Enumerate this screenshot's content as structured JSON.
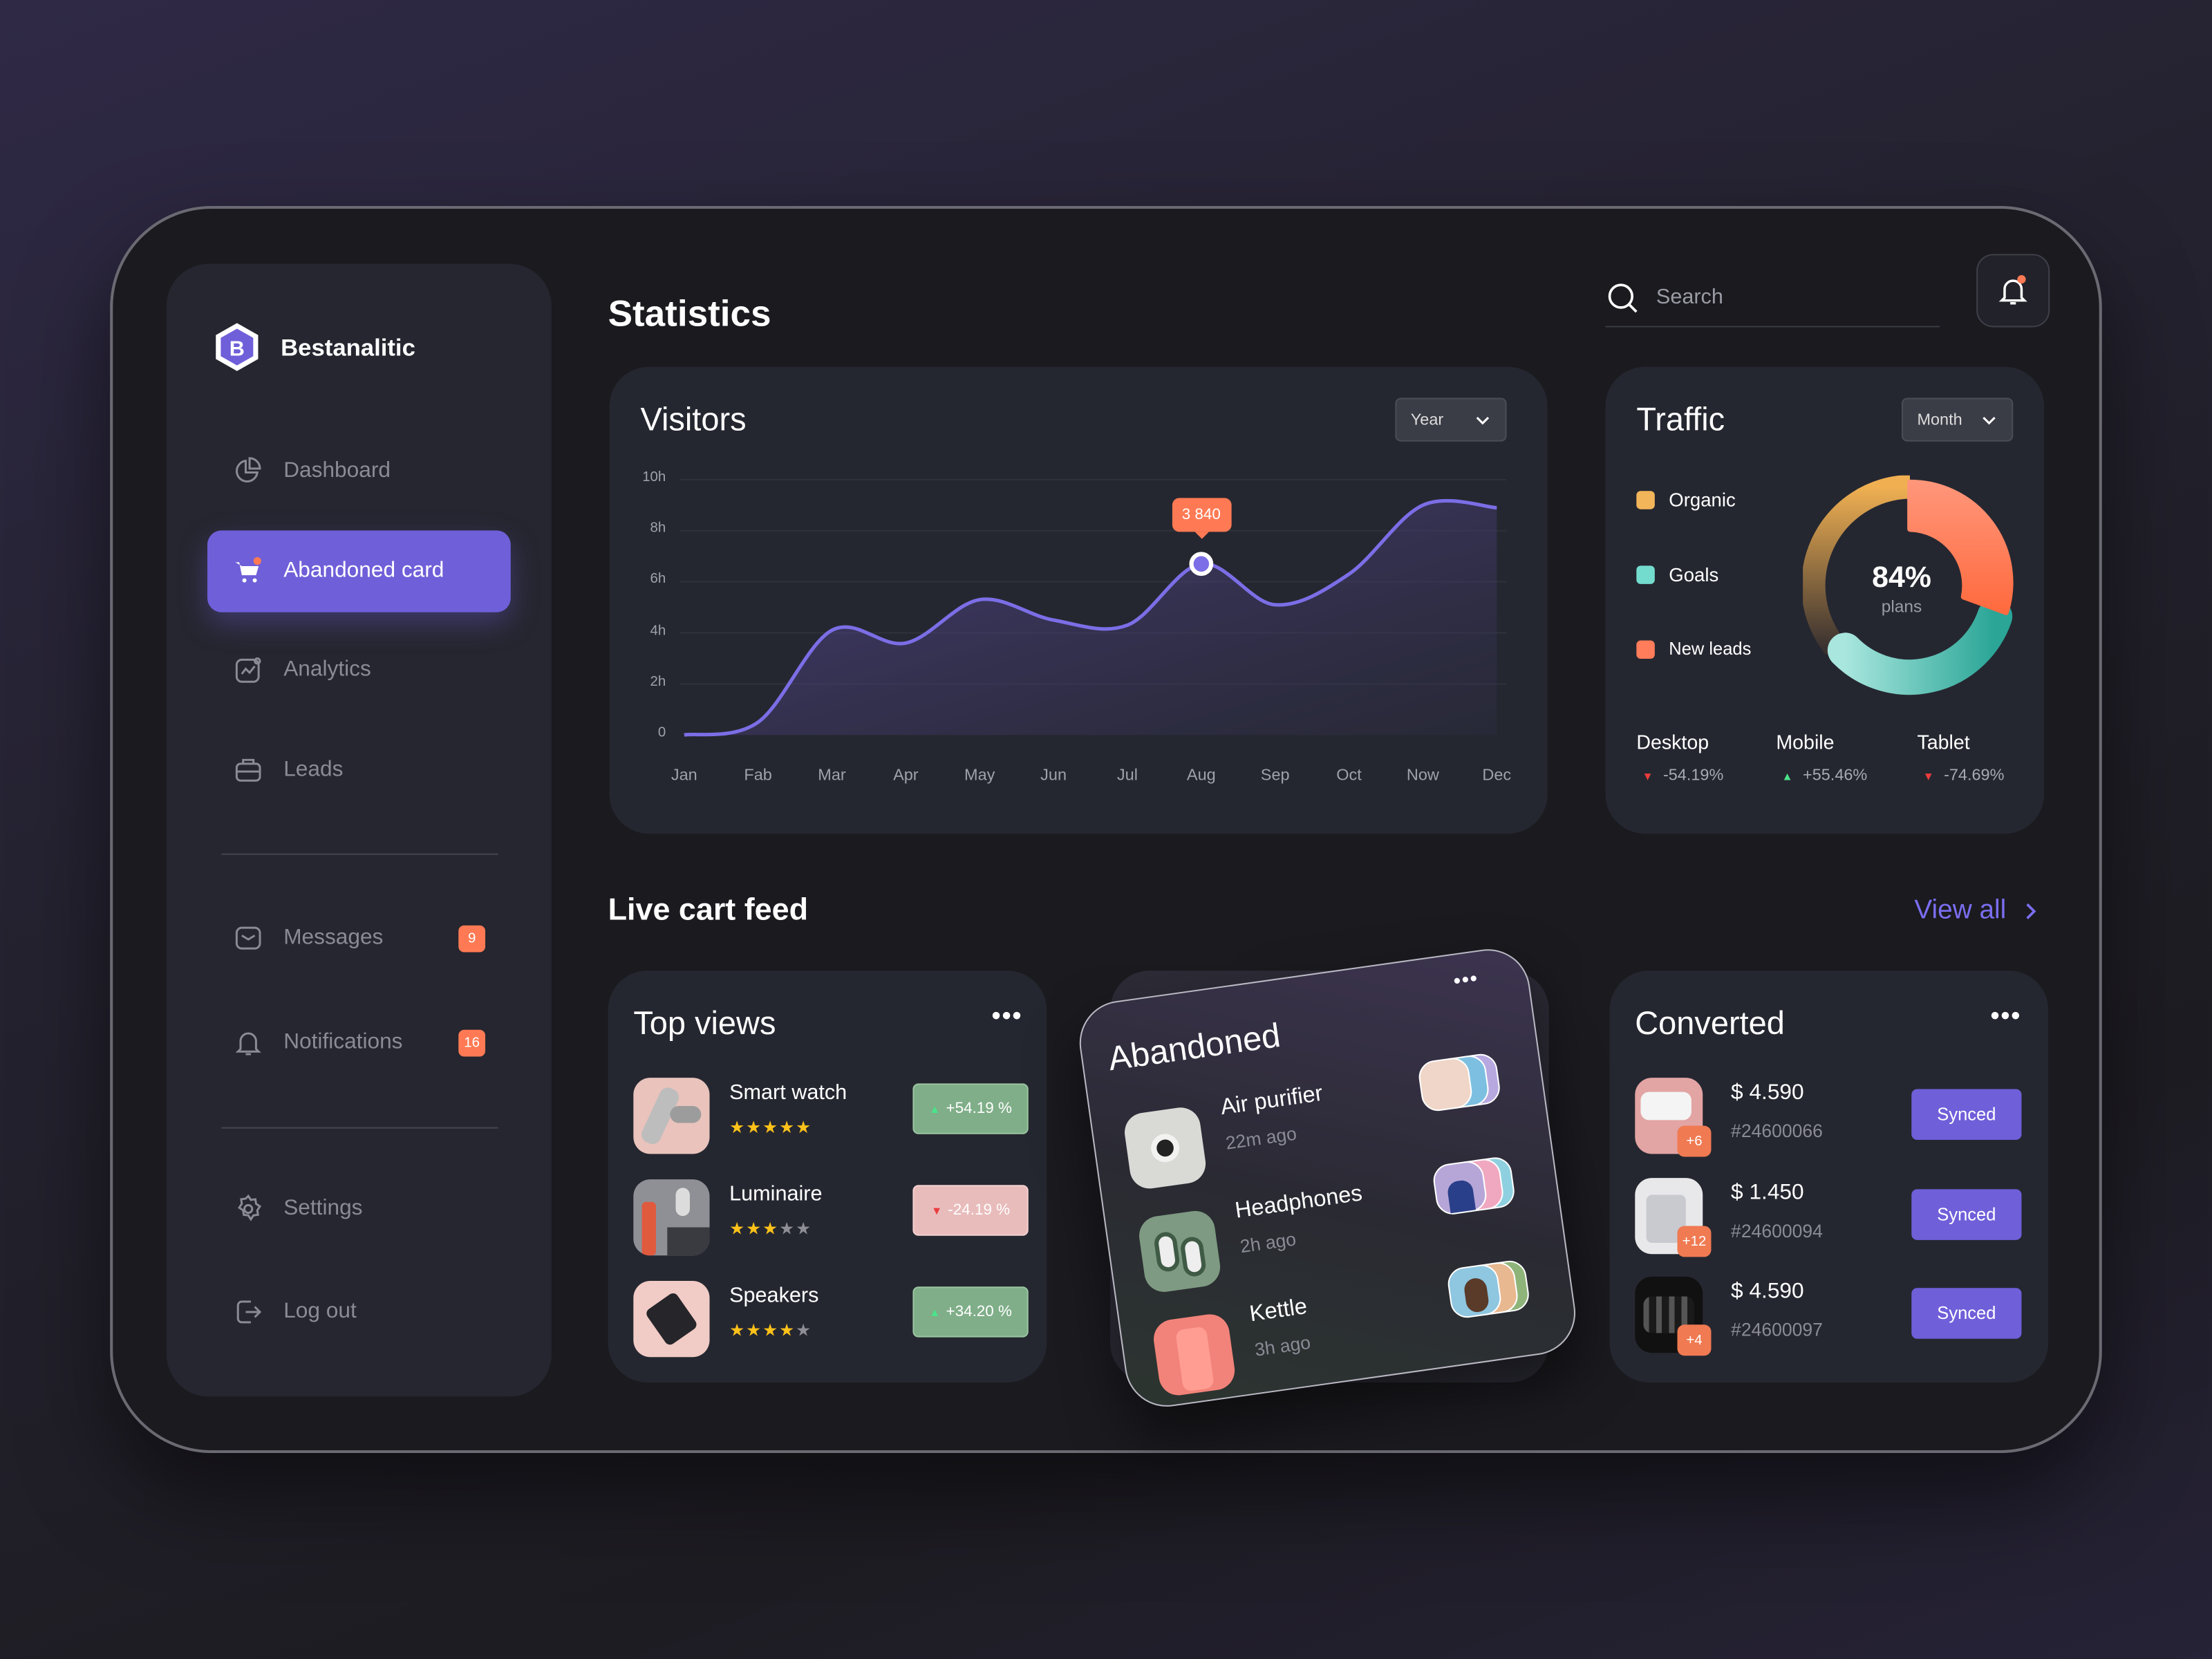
{
  "brand": {
    "name": "Bestanalitic",
    "logo_letter": "B"
  },
  "sidebar": {
    "items": [
      {
        "label": "Dashboard",
        "icon": "pie-chart-icon"
      },
      {
        "label": "Abandoned card",
        "icon": "cart-icon",
        "active": true
      },
      {
        "label": "Analytics",
        "icon": "analytics-icon"
      },
      {
        "label": "Leads",
        "icon": "briefcase-icon"
      },
      {
        "label": "Messages",
        "icon": "mail-icon",
        "badge": "9"
      },
      {
        "label": "Notifications",
        "icon": "bell-icon",
        "badge": "16"
      },
      {
        "label": "Settings",
        "icon": "gear-icon"
      },
      {
        "label": "Log out",
        "icon": "logout-icon"
      }
    ]
  },
  "header": {
    "title": "Statistics",
    "search_placeholder": "Search"
  },
  "visitors": {
    "title": "Visitors",
    "period": "Year",
    "tooltip": "3 840"
  },
  "chart_data": {
    "type": "area",
    "title": "Visitors",
    "categories": [
      "Jan",
      "Fab",
      "Mar",
      "Apr",
      "May",
      "Jun",
      "Jul",
      "Aug",
      "Sep",
      "Oct",
      "Now",
      "Dec"
    ],
    "values": [
      0,
      0.5,
      4.1,
      3.6,
      5.3,
      4.5,
      4.3,
      6.7,
      5.1,
      6.3,
      9.0,
      8.9
    ],
    "yticks": [
      "0",
      "2h",
      "4h",
      "6h",
      "8h",
      "10h"
    ],
    "ylim": [
      0,
      10
    ],
    "highlight": {
      "category": "Aug",
      "label": "3 840"
    },
    "color": "#7b6ee6"
  },
  "traffic": {
    "title": "Traffic",
    "period": "Month",
    "legend": [
      {
        "label": "Organic",
        "color": "#f3b55a"
      },
      {
        "label": "Goals",
        "color": "#74dccf"
      },
      {
        "label": "New leads",
        "color": "#ff7d5a"
      }
    ],
    "donut": {
      "center_value": "84%",
      "center_label": "plans",
      "shares": {
        "New leads": 31,
        "Goals": 32,
        "Organic": 37
      }
    },
    "devices": [
      {
        "label": "Desktop",
        "change": "-54.19%",
        "trend": "down"
      },
      {
        "label": "Mobile",
        "change": "+55.46%",
        "trend": "up"
      },
      {
        "label": "Tablet",
        "change": "-74.69%",
        "trend": "down"
      }
    ]
  },
  "feed": {
    "title": "Live cart feed",
    "view_all": "View all"
  },
  "top_views": {
    "title": "Top views",
    "items": [
      {
        "name": "Smart watch",
        "rating": 4.5,
        "change": "+54.19 %",
        "trend": "up"
      },
      {
        "name": "Luminaire",
        "rating": 3,
        "change": "-24.19 %",
        "trend": "down"
      },
      {
        "name": "Speakers",
        "rating": 4,
        "change": "+34.20 %",
        "trend": "up"
      }
    ]
  },
  "abandoned": {
    "title": "Abandoned",
    "items": [
      {
        "name": "Air purifier",
        "time": "22m ago"
      },
      {
        "name": "Headphones",
        "time": "2h ago"
      },
      {
        "name": "Kettle",
        "time": "3h ago"
      }
    ]
  },
  "converted": {
    "title": "Converted",
    "items": [
      {
        "price": "$ 4.590",
        "order": "#24600066",
        "extra": "+6",
        "status": "Synced"
      },
      {
        "price": "$ 1.450",
        "order": "#24600094",
        "extra": "+12",
        "status": "Synced"
      },
      {
        "price": "$ 4.590",
        "order": "#24600097",
        "extra": "+4",
        "status": "Synced"
      }
    ]
  },
  "colors": {
    "accent": "#6f5fd9",
    "orange": "#ff7a54",
    "up": "#4be38a",
    "down": "#ea3d3d"
  }
}
